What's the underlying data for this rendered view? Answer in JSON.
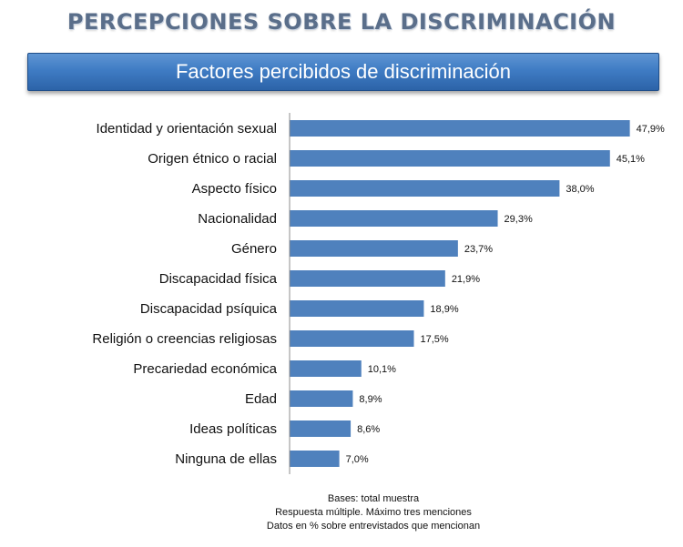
{
  "header": {
    "title": "PERCEPCIONES SOBRE LA DISCRIMINACIÓN",
    "subtitle": "Factores percibidos de discriminación"
  },
  "chart_data": {
    "type": "bar",
    "orientation": "horizontal",
    "categories": [
      "Identidad y orientación sexual",
      "Origen étnico o racial",
      "Aspecto físico",
      "Nacionalidad",
      "Género",
      "Discapacidad física",
      "Discapacidad psíquica",
      "Religión o creencias religiosas",
      "Precariedad económica",
      "Edad",
      "Ideas políticas",
      "Ninguna de ellas"
    ],
    "values": [
      47.9,
      45.1,
      38.0,
      29.3,
      23.7,
      21.9,
      18.9,
      17.5,
      10.1,
      8.9,
      8.6,
      7.0
    ],
    "value_labels": [
      "47,9%",
      "45,1%",
      "38,0%",
      "29,3%",
      "23,7%",
      "21,9%",
      "18,9%",
      "17,5%",
      "10,1%",
      "8,9%",
      "8,6%",
      "7,0%"
    ],
    "xlim": [
      0,
      50
    ],
    "bar_color": "#4f81bd",
    "grid": false
  },
  "footer": {
    "line1": "Bases: total muestra",
    "line2": "Respuesta múltiple. Máximo tres menciones",
    "line3": "Datos en % sobre entrevistados que mencionan"
  }
}
